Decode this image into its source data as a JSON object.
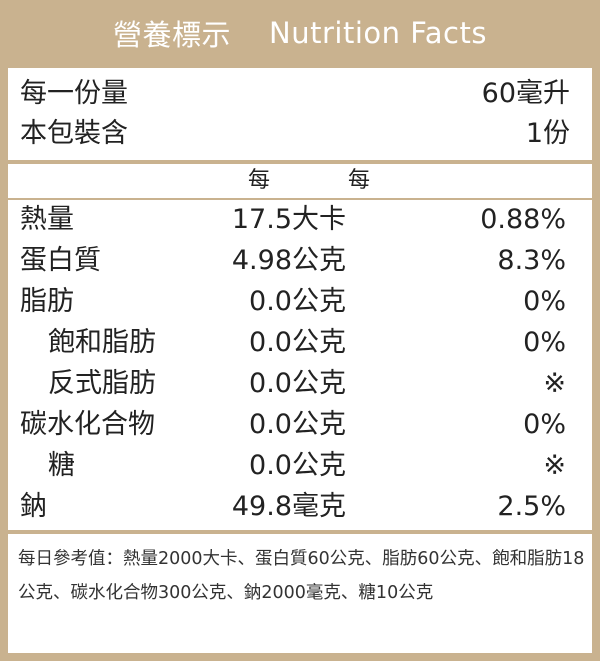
{
  "header": {
    "title_zh": "營養標示",
    "title_en": "Nutrition Facts"
  },
  "serving": {
    "per_serving_label": "每一份量",
    "per_serving_value": "60毫升",
    "servings_label": "本包裝含",
    "servings_value": "1份"
  },
  "columns": {
    "per_serving": "每份",
    "daily_percent": "每日參考值百分比"
  },
  "nutrients": [
    {
      "label": "熱量",
      "amount": "17.5大卡",
      "percent": "0.88%"
    },
    {
      "label": "蛋白質",
      "amount": "4.98公克",
      "percent": "8.3%"
    },
    {
      "label": "脂肪",
      "amount": "0.0公克",
      "percent": "0%"
    },
    {
      "label": "飽和脂肪",
      "amount": "0.0公克",
      "percent": "0%"
    },
    {
      "label": "反式脂肪",
      "amount": "0.0公克",
      "percent": "※"
    },
    {
      "label": "碳水化合物",
      "amount": "0.0公克",
      "percent": "0%"
    },
    {
      "label": "糖",
      "amount": "0.0公克",
      "percent": "※"
    },
    {
      "label": "鈉",
      "amount": "49.8毫克",
      "percent": "2.5%"
    }
  ],
  "footnote": "每日參考值：熱量2000大卡、蛋白質60公克、脂肪60公克、飽和脂肪18公克、碳水化合物300公克、鈉2000毫克、糖10公克",
  "colors": {
    "frame": "#c9b28f",
    "text": "#222222"
  }
}
